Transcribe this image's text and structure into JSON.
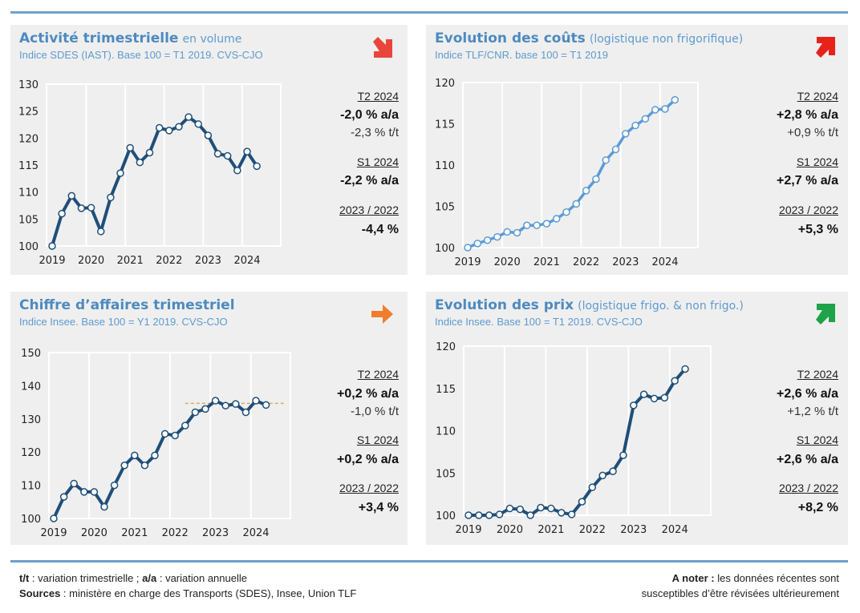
{
  "panels": [
    {
      "title": "Activité trimestrielle",
      "title_suffix": "en volume",
      "subtitle": "Indice SDES (IAST). Base 100 = T1 2019. CVS-CJO",
      "trend_icon": "arrow-down-right",
      "trend_color": "#e8463a",
      "stats": {
        "p1": "T2 2024",
        "v1": "-2,0 % a/a",
        "t1": "-2,3 % t/t",
        "p2": "S1 2024",
        "v2": "-2,2 % a/a",
        "p3": "2023 / 2022",
        "v3": "-4,4 %"
      }
    },
    {
      "title": "Evolution des coûts",
      "title_suffix": "(logistique non frigorifique)",
      "subtitle": "Indice TLF/CNR. base 100 = T1 2019",
      "trend_icon": "arrow-up-right",
      "trend_color": "#e8221b",
      "stats": {
        "p1": "T2 2024",
        "v1": "+2,8 % a/a",
        "t1": "+0,9 % t/t",
        "p2": "S1 2024",
        "v2": "+2,7 % a/a",
        "p3": "2023 / 2022",
        "v3": "+5,3 %"
      }
    },
    {
      "title": "Chiffre d’affaires trimestriel",
      "title_suffix": "",
      "subtitle": "Indice Insee. Base 100 = Y1 2019. CVS-CJO",
      "trend_icon": "arrow-right",
      "trend_color": "#ef7d2b",
      "stats": {
        "p1": "T2 2024",
        "v1": "+0,2 % a/a",
        "t1": "-1,0 % t/t",
        "p2": "S1 2024",
        "v2": "+0,2 % a/a",
        "p3": "2023 / 2022",
        "v3": "+3,4 %"
      }
    },
    {
      "title": "Evolution des prix",
      "title_suffix": "(logistique frigo. & non frigo.)",
      "subtitle": "Indice Insee. Base 100 = T1 2019. CVS-CJO",
      "trend_icon": "arrow-up-right",
      "trend_color": "#1fa24a",
      "stats": {
        "p1": "T2 2024",
        "v1": "+2,6 % a/a",
        "t1": "+1,2 % t/t",
        "p2": "S1 2024",
        "v2": "+2,6 % a/a",
        "p3": "2023 / 2022",
        "v3": "+8,2 %"
      }
    }
  ],
  "chart_data": [
    {
      "type": "line",
      "title": "Activité trimestrielle",
      "x_ticks": [
        "2019",
        "2020",
        "2021",
        "2022",
        "2023",
        "2024"
      ],
      "y_ticks": [
        100,
        105,
        110,
        115,
        120,
        125,
        130
      ],
      "ylim": [
        100,
        130
      ],
      "color": "#1f4e79",
      "values": [
        100,
        106,
        109.3,
        107,
        107.1,
        102.7,
        109,
        113.5,
        118.2,
        115.5,
        117.3,
        121.9,
        121.4,
        122.1,
        123.9,
        122.6,
        120.5,
        117.1,
        116.7,
        114,
        117.5,
        114.8
      ]
    },
    {
      "type": "line",
      "title": "Evolution des coûts",
      "x_ticks": [
        "2019",
        "2020",
        "2021",
        "2022",
        "2023",
        "2024"
      ],
      "y_ticks": [
        100,
        105,
        110,
        115,
        120
      ],
      "ylim": [
        100,
        120
      ],
      "color": "#5b9bd5",
      "values": [
        100,
        100.5,
        100.9,
        101.3,
        101.9,
        101.8,
        102.7,
        102.7,
        102.9,
        103.5,
        104.3,
        105.3,
        106.9,
        108.3,
        110.6,
        111.9,
        113.8,
        114.8,
        115.6,
        116.7,
        116.8,
        117.9
      ]
    },
    {
      "type": "line",
      "title": "Chiffre d’affaires trimestriel",
      "x_ticks": [
        "2019",
        "2020",
        "2021",
        "2022",
        "2023",
        "2024"
      ],
      "y_ticks": [
        100,
        110,
        120,
        130,
        140,
        150
      ],
      "ylim": [
        100,
        150
      ],
      "color": "#1f4e79",
      "values": [
        100,
        106.5,
        110.5,
        108,
        108,
        103.5,
        110,
        116,
        119,
        116,
        119,
        125.5,
        125,
        128,
        132,
        133,
        135.5,
        134,
        134.5,
        132,
        135.5,
        134.2
      ],
      "reference_line": {
        "value": 134.7,
        "from_index": 13,
        "color": "#e0a860"
      }
    },
    {
      "type": "line",
      "title": "Evolution des prix",
      "x_ticks": [
        "2019",
        "2020",
        "2021",
        "2022",
        "2023",
        "2024"
      ],
      "y_ticks": [
        100,
        105,
        110,
        115,
        120
      ],
      "ylim": [
        100,
        120
      ],
      "color": "#1f4e79",
      "values": [
        100,
        100,
        100,
        100.1,
        100.8,
        100.7,
        100,
        100.9,
        100.8,
        100.3,
        100.1,
        101.6,
        103.3,
        104.7,
        105.2,
        107.1,
        113,
        114.3,
        113.8,
        113.9,
        115.9,
        117.3
      ]
    }
  ],
  "footer": {
    "l1_key": "t/t",
    "l1_a": " : variation trimestrielle ; ",
    "l1_key2": "a/a",
    "l1_b": " : variation annuelle",
    "l2_key": "Sources",
    "l2_a": " : ministère en charge des Transports (SDES), Insee, Union TLF",
    "r1_key": "A noter :",
    "r1_a": " les données récentes sont",
    "r2": "susceptibles d’être révisées ultérieurement"
  }
}
